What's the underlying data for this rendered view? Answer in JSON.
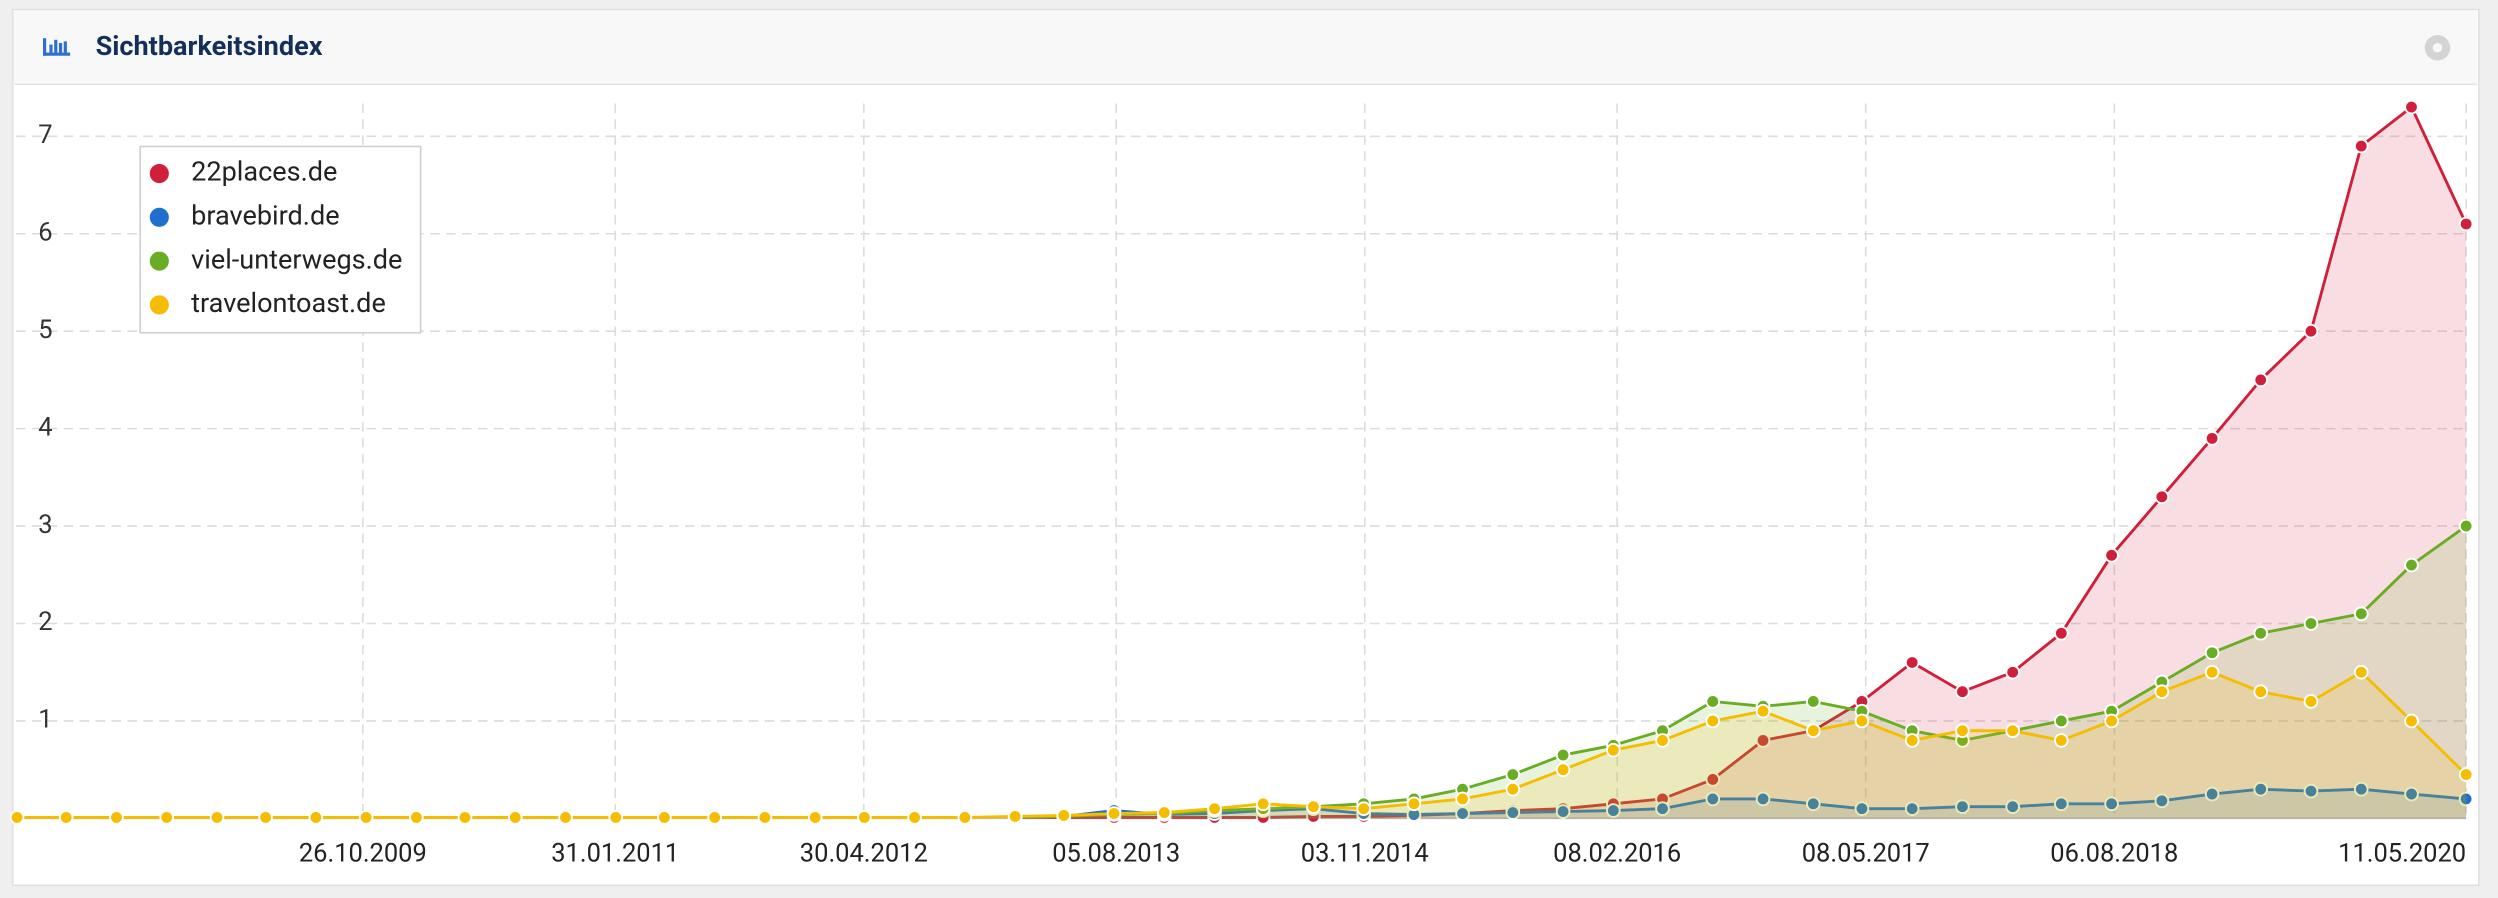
{
  "chart_data": {
    "type": "line",
    "title": "Sichtbarkeitsindex",
    "x": [
      "01.02.2008",
      "01.05.2008",
      "01.08.2008",
      "01.11.2008",
      "01.02.2009",
      "01.05.2009",
      "01.08.2009",
      "01.11.2009",
      "01.02.2010",
      "01.05.2010",
      "01.08.2010",
      "01.11.2010",
      "01.02.2011",
      "01.05.2011",
      "01.08.2011",
      "01.11.2011",
      "01.02.2012",
      "01.05.2012",
      "01.08.2012",
      "01.11.2012",
      "01.02.2013",
      "01.05.2013",
      "01.08.2013",
      "01.11.2013",
      "01.02.2014",
      "01.05.2014",
      "01.08.2014",
      "01.11.2014",
      "01.02.2015",
      "01.05.2015",
      "01.08.2015",
      "01.11.2015",
      "01.02.2016",
      "01.05.2016",
      "01.08.2016",
      "01.11.2016",
      "01.02.2017",
      "01.05.2017",
      "01.08.2017",
      "01.11.2017",
      "01.02.2018",
      "01.05.2018",
      "01.08.2018",
      "01.11.2018",
      "01.02.2019",
      "01.05.2019",
      "01.08.2019",
      "01.11.2019",
      "01.02.2020",
      "11.05.2020"
    ],
    "series": [
      {
        "name": "22places.de",
        "color": "#cf1f3a",
        "values": [
          null,
          null,
          null,
          null,
          null,
          null,
          null,
          null,
          null,
          null,
          null,
          null,
          null,
          null,
          null,
          null,
          null,
          null,
          null,
          null,
          0.01,
          0.01,
          0.01,
          0.01,
          0.01,
          0.01,
          0.02,
          0.02,
          0.03,
          0.05,
          0.08,
          0.1,
          0.15,
          0.2,
          0.4,
          0.8,
          0.9,
          1.2,
          1.6,
          1.3,
          1.5,
          1.9,
          2.7,
          3.3,
          3.9,
          4.5,
          5.0,
          6.9,
          7.3,
          6.1
        ]
      },
      {
        "name": "bravebird.de",
        "color": "#1f6fd1",
        "values": [
          null,
          null,
          null,
          null,
          null,
          null,
          null,
          null,
          null,
          null,
          null,
          null,
          null,
          null,
          null,
          null,
          null,
          null,
          null,
          null,
          0.01,
          0.02,
          0.08,
          0.04,
          0.05,
          0.08,
          0.1,
          0.05,
          0.04,
          0.05,
          0.06,
          0.07,
          0.08,
          0.1,
          0.2,
          0.2,
          0.15,
          0.1,
          0.1,
          0.12,
          0.12,
          0.15,
          0.15,
          0.18,
          0.25,
          0.3,
          0.28,
          0.3,
          0.25,
          0.2
        ]
      },
      {
        "name": "viel-unterwegs.de",
        "color": "#68ad23",
        "values": [
          null,
          null,
          null,
          null,
          null,
          null,
          null,
          null,
          null,
          null,
          null,
          null,
          null,
          null,
          null,
          null,
          null,
          null,
          null,
          null,
          0.01,
          0.02,
          0.04,
          0.05,
          0.08,
          0.1,
          0.12,
          0.15,
          0.2,
          0.3,
          0.45,
          0.65,
          0.75,
          0.9,
          1.2,
          1.15,
          1.2,
          1.1,
          0.9,
          0.8,
          0.9,
          1.0,
          1.1,
          1.4,
          1.7,
          1.9,
          2.0,
          2.1,
          2.6,
          3.0
        ]
      },
      {
        "name": "travelontoast.de",
        "color": "#f5bc00",
        "values": [
          0.01,
          0.01,
          0.01,
          0.01,
          0.01,
          0.01,
          0.01,
          0.01,
          0.01,
          0.01,
          0.01,
          0.01,
          0.01,
          0.01,
          0.01,
          0.01,
          0.01,
          0.01,
          0.01,
          0.01,
          0.02,
          0.03,
          0.05,
          0.06,
          0.1,
          0.15,
          0.12,
          0.1,
          0.15,
          0.2,
          0.3,
          0.5,
          0.7,
          0.8,
          1.0,
          1.1,
          0.9,
          1.0,
          0.8,
          0.9,
          0.9,
          0.8,
          1.0,
          1.3,
          1.5,
          1.3,
          1.2,
          1.5,
          1.0,
          0.45
        ]
      }
    ],
    "xlim": [
      "30.01.2008",
      "11.05.2020"
    ],
    "xticks": [
      "26.10.2009",
      "31.01.2011",
      "30.04.2012",
      "05.08.2013",
      "03.11.2014",
      "08.02.2016",
      "08.05.2017",
      "06.08.2018",
      "11.05.2020"
    ],
    "ylim": [
      0,
      7.5
    ],
    "yticks": [
      1,
      2,
      3,
      4,
      5,
      6,
      7
    ],
    "grid": true,
    "legend": "upper left"
  }
}
